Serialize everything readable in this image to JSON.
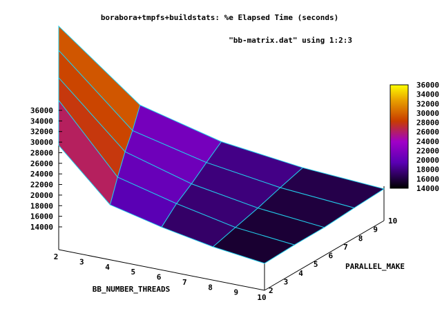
{
  "chart_data": {
    "type": "surface",
    "title": "borabora+tmpfs+buildstats: %e Elapsed Time (seconds)",
    "series_label": "\"bb-matrix.dat\" using 1:2:3",
    "xlabel": "BB_NUMBER_THREADS",
    "ylabel": "PARALLEL_MAKE",
    "zlabel": "",
    "xlim": [
      2,
      10
    ],
    "ylim": [
      2,
      10
    ],
    "zlim": [
      14000,
      36000
    ],
    "x_ticks": [
      "2",
      "3",
      "4",
      "5",
      "6",
      "7",
      "8",
      "9",
      "10"
    ],
    "y_ticks": [
      "2",
      "3",
      "4",
      "5",
      "6",
      "7",
      "8",
      "9",
      "10"
    ],
    "z_ticks": [
      "14000",
      "16000",
      "18000",
      "20000",
      "22000",
      "24000",
      "26000",
      "28000",
      "30000",
      "32000",
      "34000",
      "36000"
    ],
    "colorbox_ticks": [
      "14000",
      "16000",
      "18000",
      "20000",
      "22000",
      "24000",
      "26000",
      "28000",
      "30000",
      "32000",
      "34000",
      "36000"
    ],
    "grid": false,
    "colorbar": true,
    "palette": [
      "#000000",
      "#9b00ff",
      "#c83c00",
      "#ffdc00",
      "#ffff00"
    ],
    "mesh_color": "#22cdea",
    "x": [
      2,
      4,
      6,
      8,
      10
    ],
    "y": [
      2,
      4,
      6,
      8,
      10
    ],
    "z": [
      [
        29400,
        33900,
        34200,
        35400,
        36000
      ],
      [
        20100,
        21500,
        22500,
        22700,
        23700
      ],
      [
        17800,
        18600,
        18700,
        19100,
        19400
      ],
      [
        16000,
        16200,
        16400,
        16800,
        17100
      ],
      [
        14800,
        15000,
        15000,
        15400,
        15700
      ]
    ]
  }
}
